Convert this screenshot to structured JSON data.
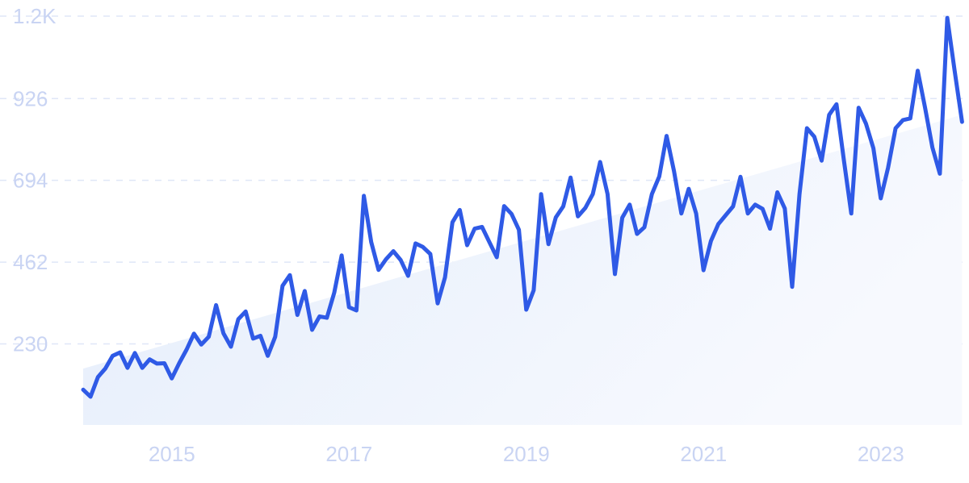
{
  "chart_data": {
    "type": "line",
    "y_ticks": [
      "230",
      "462",
      "694",
      "926",
      "1.2K"
    ],
    "y_tick_values": [
      230,
      462,
      694,
      926,
      1160
    ],
    "x_ticks": [
      "2015",
      "2017",
      "2019",
      "2021",
      "2023"
    ],
    "x_tick_values": [
      2015,
      2017,
      2019,
      2021,
      2023
    ],
    "ylim": [
      0,
      1160
    ],
    "xlim": [
      2014.0,
      2023.95
    ],
    "grid": true,
    "trend_area": {
      "start": 160,
      "end": 880
    },
    "x": [
      2014.0,
      2014.083,
      2014.167,
      2014.25,
      2014.333,
      2014.417,
      2014.5,
      2014.583,
      2014.667,
      2014.75,
      2014.833,
      2014.917,
      2015.0,
      2015.083,
      2015.167,
      2015.25,
      2015.333,
      2015.417,
      2015.5,
      2015.583,
      2015.667,
      2015.75,
      2015.833,
      2015.917,
      2016.0,
      2016.083,
      2016.167,
      2016.25,
      2016.333,
      2016.417,
      2016.5,
      2016.583,
      2016.667,
      2016.75,
      2016.833,
      2016.917,
      2017.0,
      2017.083,
      2017.167,
      2017.25,
      2017.333,
      2017.417,
      2017.5,
      2017.583,
      2017.667,
      2017.75,
      2017.833,
      2017.917,
      2018.0,
      2018.083,
      2018.167,
      2018.25,
      2018.333,
      2018.417,
      2018.5,
      2018.583,
      2018.667,
      2018.75,
      2018.833,
      2018.917,
      2019.0,
      2019.083,
      2019.167,
      2019.25,
      2019.333,
      2019.417,
      2019.5,
      2019.583,
      2019.667,
      2019.75,
      2019.833,
      2019.917,
      2020.0,
      2020.083,
      2020.167,
      2020.25,
      2020.333,
      2020.417,
      2020.5,
      2020.583,
      2020.667,
      2020.75,
      2020.833,
      2020.917,
      2021.0,
      2021.083,
      2021.167,
      2021.25,
      2021.333,
      2021.417,
      2021.5,
      2021.583,
      2021.667,
      2021.75,
      2021.833,
      2021.917,
      2022.0,
      2022.083,
      2022.167,
      2022.25,
      2022.333,
      2022.417,
      2022.5,
      2022.583,
      2022.667,
      2022.75,
      2022.833,
      2022.917,
      2023.0,
      2023.083,
      2023.167,
      2023.25,
      2023.333,
      2023.417,
      2023.5,
      2023.583,
      2023.667,
      2023.75,
      2023.833,
      2023.917
    ],
    "values": [
      100,
      80,
      136,
      160,
      196,
      206,
      162,
      204,
      162,
      186,
      174,
      175,
      132,
      175,
      214,
      259,
      228,
      250,
      340,
      260,
      222,
      300,
      322,
      245,
      253,
      196,
      250,
      395,
      425,
      312,
      380,
      270,
      308,
      304,
      375,
      481,
      334,
      325,
      650,
      519,
      440,
      470,
      493,
      468,
      423,
      515,
      505,
      485,
      345,
      419,
      575,
      610,
      510,
      557,
      562,
      519,
      476,
      621,
      599,
      554,
      327,
      382,
      655,
      513,
      589,
      620,
      702,
      592,
      616,
      655,
      746,
      655,
      428,
      588,
      625,
      542,
      561,
      655,
      705,
      820,
      720,
      600,
      670,
      600,
      439,
      522,
      570,
      595,
      620,
      704,
      600,
      625,
      613,
      557,
      660,
      614,
      392,
      655,
      842,
      818,
      750,
      880,
      910,
      752,
      600,
      900,
      855,
      785,
      643,
      730,
      842,
      865,
      870,
      1005,
      900,
      787,
      713,
      1155,
      1005,
      860
    ]
  }
}
